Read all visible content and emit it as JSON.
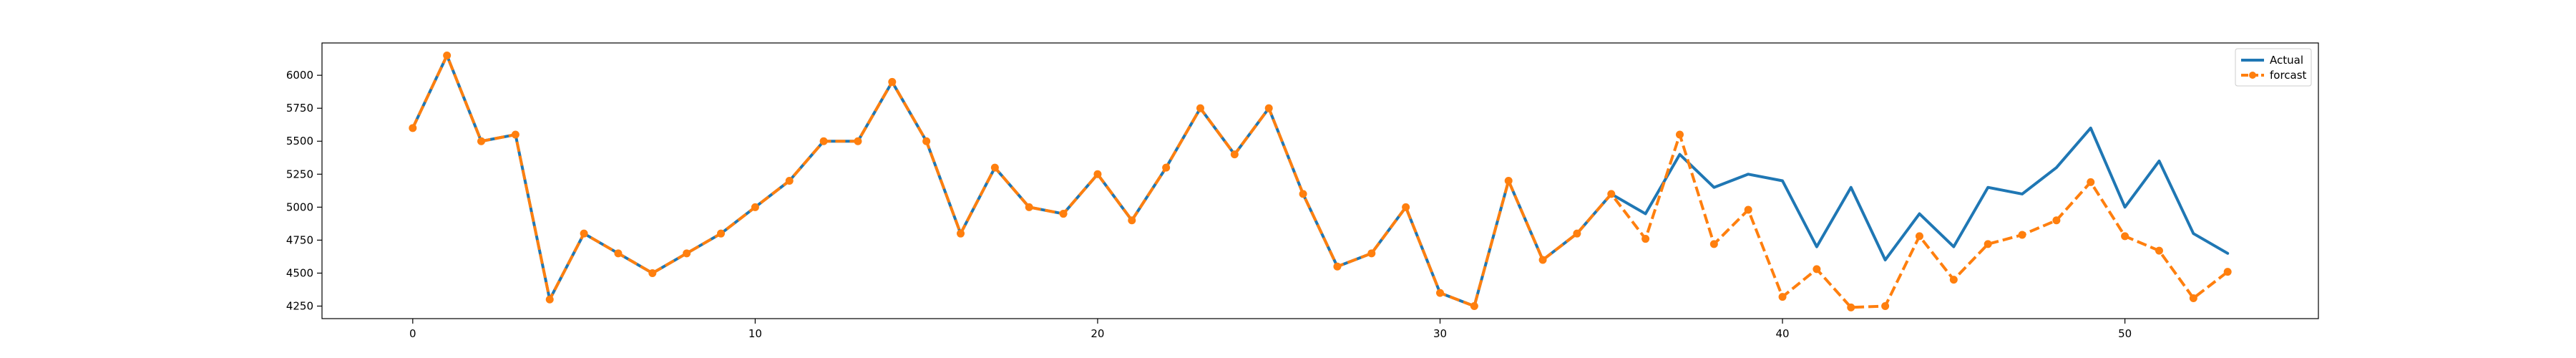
{
  "chart_data": {
    "type": "line",
    "title": "",
    "xlabel": "",
    "ylabel": "",
    "xlim": [
      -2.65,
      55.65
    ],
    "ylim": [
      4155,
      6245
    ],
    "xticks": [
      0,
      10,
      20,
      30,
      40,
      50
    ],
    "yticks": [
      4250,
      4500,
      4750,
      5000,
      5250,
      5500,
      5750,
      6000
    ],
    "grid": false,
    "legend_position": "top-right",
    "x": [
      0,
      1,
      2,
      3,
      4,
      5,
      6,
      7,
      8,
      9,
      10,
      11,
      12,
      13,
      14,
      15,
      16,
      17,
      18,
      19,
      20,
      21,
      22,
      23,
      24,
      25,
      26,
      27,
      28,
      29,
      30,
      31,
      32,
      33,
      34,
      35,
      36,
      37,
      38,
      39,
      40,
      41,
      42,
      43,
      44,
      45,
      46,
      47,
      48,
      49,
      50,
      51,
      52,
      53
    ],
    "series": [
      {
        "name": "Actual",
        "color": "#1f77b4",
        "style": "solid",
        "marker": "none",
        "values": [
          5600,
          6150,
          5500,
          5550,
          4300,
          4800,
          4650,
          4500,
          4650,
          4800,
          5000,
          5200,
          5500,
          5500,
          5950,
          5500,
          4800,
          5300,
          5000,
          4950,
          5250,
          4900,
          5300,
          5750,
          5400,
          5750,
          5100,
          4550,
          4650,
          5000,
          4350,
          4250,
          5200,
          4600,
          4800,
          5100,
          4950,
          5400,
          5150,
          5250,
          5200,
          4700,
          5150,
          4600,
          4950,
          4700,
          5150,
          5100,
          5300,
          5600,
          5000,
          5350,
          4800,
          4650
        ]
      },
      {
        "name": "forcast",
        "color": "#ff7f0e",
        "style": "dashed",
        "marker": "circle",
        "values": [
          5600,
          6150,
          5500,
          5550,
          4300,
          4800,
          4650,
          4500,
          4650,
          4800,
          5000,
          5200,
          5500,
          5500,
          5950,
          5500,
          4800,
          5300,
          5000,
          4950,
          5250,
          4900,
          5300,
          5750,
          5400,
          5750,
          5100,
          4550,
          4650,
          5000,
          4350,
          4250,
          5200,
          4600,
          4800,
          5100,
          4760,
          5550,
          4720,
          4980,
          4320,
          4530,
          4240,
          4250,
          4780,
          4450,
          4720,
          4790,
          4900,
          5190,
          4780,
          4670,
          4310,
          4510
        ]
      }
    ]
  }
}
